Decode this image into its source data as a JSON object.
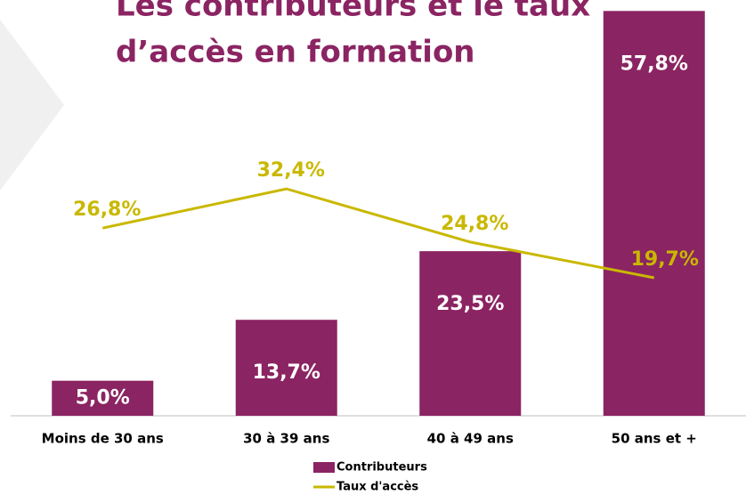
{
  "chart_data": {
    "type": "bar_line",
    "title": [
      "Les contributeurs et le taux",
      "d’accès en formation"
    ],
    "categories": [
      "Moins de 30 ans",
      "30 à 39 ans",
      "40 à 49 ans",
      "50 ans et +"
    ],
    "series": [
      {
        "name": "Contributeurs",
        "type": "bar",
        "color": "#8b2462",
        "values": [
          5.0,
          13.7,
          23.5,
          57.8
        ],
        "value_labels": [
          "5,0%",
          "13,7%",
          "23,5%",
          "57,8%"
        ]
      },
      {
        "name": "Taux d'accès",
        "type": "line",
        "color": "#c9b800",
        "values": [
          26.8,
          32.4,
          24.8,
          19.7
        ],
        "value_labels": [
          "26,8%",
          "32,4%",
          "24,8%",
          "19,7%"
        ]
      }
    ],
    "ylim": [
      0,
      60
    ]
  }
}
